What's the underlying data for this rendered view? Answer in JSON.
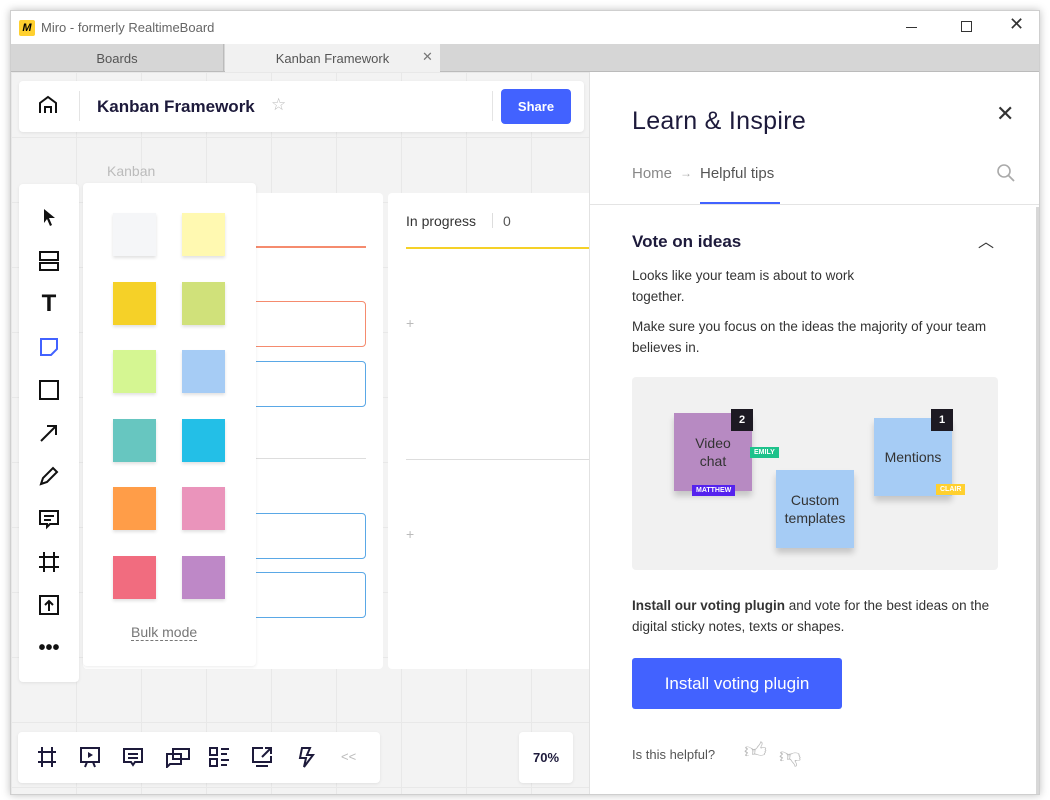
{
  "window": {
    "title": "Miro - formerly RealtimeBoard",
    "controls": [
      "minimize",
      "maximize",
      "close"
    ]
  },
  "tabs": [
    {
      "label": "Boards",
      "active": false
    },
    {
      "label": "Kanban Framework",
      "active": true
    }
  ],
  "header": {
    "board_title": "Kanban Framework",
    "share_label": "Share"
  },
  "board": {
    "frame_label": "Kanban",
    "columns": [
      {
        "title": "In progress",
        "count": "0"
      }
    ],
    "add_symbol": "+"
  },
  "toolbar": {
    "tools": [
      "select",
      "templates",
      "text",
      "sticky-note",
      "shape",
      "arrow",
      "pen",
      "comment",
      "frame",
      "upload",
      "more"
    ]
  },
  "sticky_palette": {
    "colors": [
      "#f5f6f8",
      "#fff9b1",
      "#f5d128",
      "#d0e17a",
      "#d5f692",
      "#a6ccf5",
      "#67c6c0",
      "#23bfe7",
      "#ff9d48",
      "#ea94bb",
      "#f16c7f",
      "#be88c7"
    ],
    "bulk_mode_label": "Bulk mode"
  },
  "bottom_bar": {
    "tools": [
      "frames",
      "presentation",
      "comments",
      "chat",
      "cards",
      "screen-share",
      "lightning"
    ],
    "collapse_symbol": "<<",
    "zoom": "70%"
  },
  "panel": {
    "title": "Learn & Inspire",
    "breadcrumb_home": "Home",
    "breadcrumb_arrow": "→",
    "breadcrumb_current": "Helpful tips",
    "section_title": "Vote on ideas",
    "para1": "Looks like your team is about to work together.",
    "para2": "Make sure you focus on the ideas the majority of your team believes in.",
    "illustration": {
      "note1": "Video chat",
      "note1_votes": "2",
      "note2": "Custom templates",
      "note3": "Mentions",
      "note3_votes": "1",
      "cursor1": "EMILY",
      "cursor2": "MATTHEW",
      "cursor3": "CLAIR"
    },
    "install_bold": "Install our voting plugin",
    "install_rest": " and vote for the best ideas on the digital sticky notes, texts or shapes.",
    "install_button": "Install voting plugin",
    "helpful_question": "Is this helpful?"
  },
  "colors": {
    "accent": "#4262ff",
    "text_dark": "#1d1a3b"
  }
}
